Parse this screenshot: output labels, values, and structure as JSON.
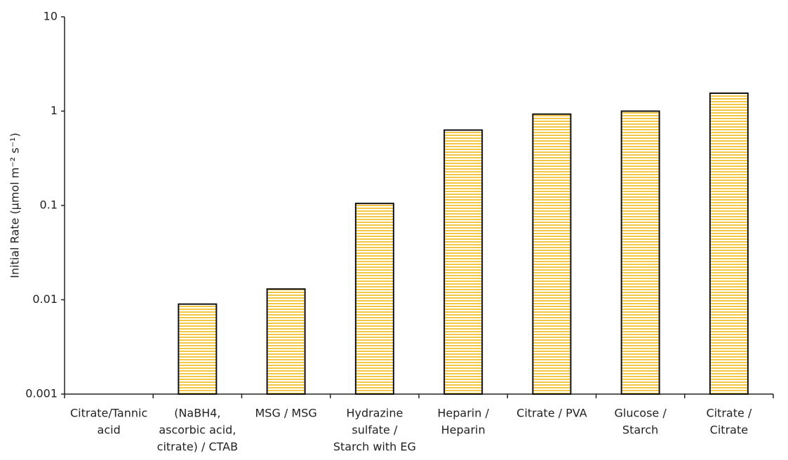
{
  "chart_data": {
    "type": "bar",
    "y_label": "Initial Rate (µmol m⁻² s⁻¹)",
    "categories": [
      [
        "Citrate/Tannic",
        "acid"
      ],
      [
        "(NaBH4,",
        "ascorbic acid,",
        "citrate) / CTAB"
      ],
      [
        "MSG / MSG"
      ],
      [
        "Hydrazine",
        "sulfate /",
        "Starch with EG"
      ],
      [
        "Heparin /",
        "Heparin"
      ],
      [
        "Citrate / PVA"
      ],
      [
        "Glucose /",
        "Starch"
      ],
      [
        "Citrate /",
        "Citrate"
      ]
    ],
    "values": [
      null,
      0.009,
      0.013,
      0.105,
      0.63,
      0.93,
      1.0,
      1.55
    ],
    "color": "#f2c744",
    "yscale": "log",
    "ylim": [
      0.001,
      10
    ],
    "yticks": [
      0.001,
      0.01,
      0.1,
      1,
      10
    ],
    "grid": false
  }
}
